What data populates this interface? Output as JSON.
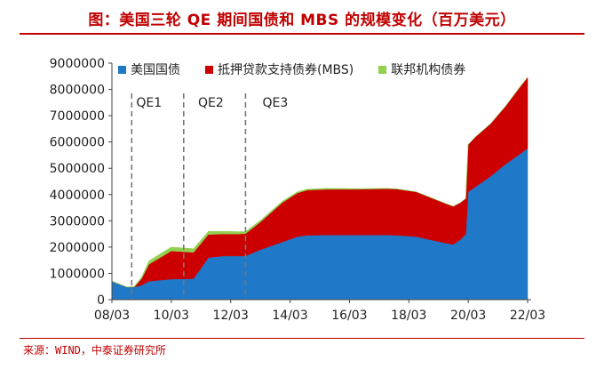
{
  "title": "图：美国三轮 QE 期间国债和 MBS 的规模变化（百万美元）",
  "source": "来源：WIND，中泰证券研究所",
  "colors": {
    "title": "#c00000",
    "treasury": "#1f78c8",
    "mbs": "#cc0000",
    "agency": "#92d050"
  },
  "chart_data": {
    "type": "area",
    "stacked": true,
    "x_tick_labels": [
      "08/03",
      "10/03",
      "12/03",
      "14/03",
      "16/03",
      "18/03",
      "20/03",
      "22/03"
    ],
    "x": [
      "2008-03",
      "2008-09",
      "2008-12",
      "2009-03",
      "2009-06",
      "2010-03",
      "2010-12",
      "2011-06",
      "2011-12",
      "2012-06",
      "2012-09",
      "2013-03",
      "2013-12",
      "2014-06",
      "2014-10",
      "2015-06",
      "2016-06",
      "2017-06",
      "2017-10",
      "2018-06",
      "2019-06",
      "2019-09",
      "2019-12",
      "2020-02",
      "2020-03",
      "2020-06",
      "2020-12",
      "2021-06",
      "2021-12",
      "2022-03"
    ],
    "series": [
      {
        "name": "美国国债",
        "values": [
          700000,
          480000,
          480000,
          550000,
          700000,
          780000,
          800000,
          1600000,
          1660000,
          1660000,
          1660000,
          1900000,
          2200000,
          2400000,
          2450000,
          2460000,
          2460000,
          2460000,
          2450000,
          2400000,
          2150000,
          2100000,
          2300000,
          2500000,
          4100000,
          4300000,
          4690000,
          5150000,
          5550000,
          5760000
        ]
      },
      {
        "name": "抵押贷款支持债券(MBS)",
        "values": [
          0,
          0,
          0,
          250000,
          650000,
          1070000,
          1000000,
          880000,
          840000,
          840000,
          850000,
          1050000,
          1500000,
          1660000,
          1720000,
          1740000,
          1740000,
          1760000,
          1760000,
          1700000,
          1500000,
          1450000,
          1400000,
          1350000,
          1800000,
          1900000,
          2000000,
          2200000,
          2550000,
          2700000
        ]
      },
      {
        "name": "联邦机构债券",
        "values": [
          0,
          0,
          20000,
          60000,
          130000,
          150000,
          140000,
          120000,
          100000,
          90000,
          80000,
          65000,
          55000,
          45000,
          40000,
          35000,
          25000,
          15000,
          10000,
          5000,
          3000,
          3000,
          3000,
          3000,
          3000,
          3000,
          3000,
          3000,
          3000,
          3000
        ]
      }
    ],
    "y_tick_labels": [
      "0",
      "1000000",
      "2000000",
      "3000000",
      "4000000",
      "5000000",
      "6000000",
      "7000000",
      "8000000",
      "9000000"
    ],
    "ylim": [
      0,
      9000000
    ],
    "xlim": [
      "2008-03",
      "2022-03"
    ],
    "annotations": [
      {
        "label": "QE1",
        "start": "2008-11",
        "end": "2010-03"
      },
      {
        "label": "QE2",
        "start": "2010-03",
        "end": "2012-09"
      },
      {
        "label": "QE3",
        "start": "2012-09",
        "end": "2014-10"
      }
    ],
    "vlines": [
      "2008-11",
      "2010-08",
      "2012-09"
    ],
    "legend_position": "top-left",
    "grid": false
  }
}
